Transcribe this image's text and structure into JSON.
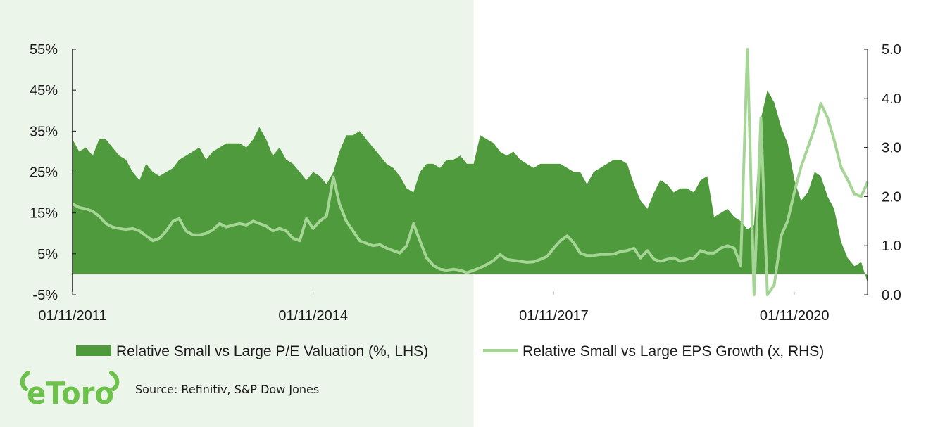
{
  "colors": {
    "highlight_band": "#ecf5e9",
    "area_fill": "#4f9a3c",
    "line": "#a4d595",
    "axis": "#1a1a1a",
    "logo": "#6cc24a"
  },
  "logo": {
    "text": "eToro"
  },
  "source": "Source: Refinitiv, S&P Dow Jones",
  "chart_data": {
    "type": "area",
    "x_axis": {
      "type": "date",
      "range": [
        "2011-11-01",
        "2021-09-30"
      ],
      "tick_labels": [
        "01/11/2011",
        "01/11/2014",
        "01/11/2017",
        "01/11/2020"
      ],
      "tick_dates": [
        "2011-11-01",
        "2014-11-01",
        "2017-11-01",
        "2020-11-01"
      ]
    },
    "y_left": {
      "range": [
        -5,
        55
      ],
      "unit": "%",
      "tick_labels": [
        "-5%",
        "5%",
        "15%",
        "25%",
        "35%",
        "45%",
        "55%"
      ],
      "tick_values": [
        -5,
        5,
        15,
        25,
        35,
        45,
        55
      ]
    },
    "y_right": {
      "range": [
        0,
        5
      ],
      "tick_labels": [
        "0.0",
        "1.0",
        "2.0",
        "3.0",
        "4.0",
        "5.0"
      ],
      "tick_values": [
        0,
        1,
        2,
        3,
        4,
        5
      ]
    },
    "grid": false,
    "legend_placement": "bottom",
    "highlight_band": [
      "2011-11-01",
      "2016-11-01"
    ],
    "series": [
      {
        "name": "Relative Small vs Large P/E Valuation (%, LHS)",
        "axis": "left",
        "type": "area",
        "points": [
          [
            "2011-11-01",
            33
          ],
          [
            "2011-12-01",
            30
          ],
          [
            "2012-01-01",
            31
          ],
          [
            "2012-02-01",
            29
          ],
          [
            "2012-03-01",
            33
          ],
          [
            "2012-04-01",
            33
          ],
          [
            "2012-05-01",
            31
          ],
          [
            "2012-06-01",
            29
          ],
          [
            "2012-07-01",
            28
          ],
          [
            "2012-08-01",
            25
          ],
          [
            "2012-09-01",
            23
          ],
          [
            "2012-10-01",
            27
          ],
          [
            "2012-11-01",
            25
          ],
          [
            "2012-12-01",
            24
          ],
          [
            "2013-01-01",
            25
          ],
          [
            "2013-02-01",
            26
          ],
          [
            "2013-03-01",
            28
          ],
          [
            "2013-04-01",
            29
          ],
          [
            "2013-05-01",
            30
          ],
          [
            "2013-06-01",
            31
          ],
          [
            "2013-07-01",
            28
          ],
          [
            "2013-08-01",
            30
          ],
          [
            "2013-09-01",
            31
          ],
          [
            "2013-10-01",
            32
          ],
          [
            "2013-11-01",
            32
          ],
          [
            "2013-12-01",
            32
          ],
          [
            "2014-01-01",
            31
          ],
          [
            "2014-02-01",
            33
          ],
          [
            "2014-03-01",
            36
          ],
          [
            "2014-04-01",
            33
          ],
          [
            "2014-05-01",
            29
          ],
          [
            "2014-06-01",
            31
          ],
          [
            "2014-07-01",
            28
          ],
          [
            "2014-08-01",
            27
          ],
          [
            "2014-09-01",
            25
          ],
          [
            "2014-10-01",
            23
          ],
          [
            "2014-11-01",
            25
          ],
          [
            "2014-12-01",
            24
          ],
          [
            "2015-01-01",
            22
          ],
          [
            "2015-02-01",
            25
          ],
          [
            "2015-03-01",
            30
          ],
          [
            "2015-04-01",
            34
          ],
          [
            "2015-05-01",
            34
          ],
          [
            "2015-06-01",
            35
          ],
          [
            "2015-07-01",
            33
          ],
          [
            "2015-08-01",
            31
          ],
          [
            "2015-09-01",
            29
          ],
          [
            "2015-10-01",
            27
          ],
          [
            "2015-11-01",
            26
          ],
          [
            "2015-12-01",
            24
          ],
          [
            "2016-01-01",
            21
          ],
          [
            "2016-02-01",
            20
          ],
          [
            "2016-03-01",
            25
          ],
          [
            "2016-04-01",
            27
          ],
          [
            "2016-05-01",
            27
          ],
          [
            "2016-06-01",
            26
          ],
          [
            "2016-07-01",
            28
          ],
          [
            "2016-08-01",
            28
          ],
          [
            "2016-09-01",
            29
          ],
          [
            "2016-10-01",
            27
          ],
          [
            "2016-11-01",
            27
          ],
          [
            "2016-12-01",
            34
          ],
          [
            "2017-01-01",
            33
          ],
          [
            "2017-02-01",
            32
          ],
          [
            "2017-03-01",
            30
          ],
          [
            "2017-04-01",
            29
          ],
          [
            "2017-05-01",
            30
          ],
          [
            "2017-06-01",
            28
          ],
          [
            "2017-07-01",
            27
          ],
          [
            "2017-08-01",
            26
          ],
          [
            "2017-09-01",
            27
          ],
          [
            "2017-10-01",
            27
          ],
          [
            "2017-11-01",
            27
          ],
          [
            "2017-12-01",
            27
          ],
          [
            "2018-01-01",
            26
          ],
          [
            "2018-02-01",
            25
          ],
          [
            "2018-03-01",
            25
          ],
          [
            "2018-04-01",
            22
          ],
          [
            "2018-05-01",
            25
          ],
          [
            "2018-06-01",
            26
          ],
          [
            "2018-07-01",
            27
          ],
          [
            "2018-08-01",
            28
          ],
          [
            "2018-09-01",
            28
          ],
          [
            "2018-10-01",
            27
          ],
          [
            "2018-11-01",
            22
          ],
          [
            "2018-12-01",
            18
          ],
          [
            "2019-01-01",
            16
          ],
          [
            "2019-02-01",
            20
          ],
          [
            "2019-03-01",
            23
          ],
          [
            "2019-04-01",
            22
          ],
          [
            "2019-05-01",
            20
          ],
          [
            "2019-06-01",
            21
          ],
          [
            "2019-07-01",
            21
          ],
          [
            "2019-08-01",
            20
          ],
          [
            "2019-09-01",
            23
          ],
          [
            "2019-10-01",
            24
          ],
          [
            "2019-11-01",
            14
          ],
          [
            "2019-12-01",
            15
          ],
          [
            "2020-01-01",
            16
          ],
          [
            "2020-02-01",
            14
          ],
          [
            "2020-03-01",
            13
          ],
          [
            "2020-04-01",
            11
          ],
          [
            "2020-05-01",
            12
          ],
          [
            "2020-06-01",
            38
          ],
          [
            "2020-07-01",
            45
          ],
          [
            "2020-08-01",
            42
          ],
          [
            "2020-09-01",
            36
          ],
          [
            "2020-10-01",
            32
          ],
          [
            "2020-11-01",
            23
          ],
          [
            "2020-12-01",
            18
          ],
          [
            "2021-01-01",
            20
          ],
          [
            "2021-02-01",
            25
          ],
          [
            "2021-03-01",
            24
          ],
          [
            "2021-04-01",
            19
          ],
          [
            "2021-05-01",
            16
          ],
          [
            "2021-06-01",
            8
          ],
          [
            "2021-07-01",
            4
          ],
          [
            "2021-08-01",
            2
          ],
          [
            "2021-09-01",
            3
          ],
          [
            "2021-09-30",
            -2
          ]
        ]
      },
      {
        "name": "Relative Small vs Large EPS Growth (x, RHS)",
        "axis": "right",
        "type": "line",
        "points": [
          [
            "2011-11-01",
            1.85
          ],
          [
            "2011-12-01",
            1.78
          ],
          [
            "2012-01-01",
            1.75
          ],
          [
            "2012-02-01",
            1.7
          ],
          [
            "2012-03-01",
            1.6
          ],
          [
            "2012-04-01",
            1.45
          ],
          [
            "2012-05-01",
            1.38
          ],
          [
            "2012-06-01",
            1.35
          ],
          [
            "2012-07-01",
            1.33
          ],
          [
            "2012-08-01",
            1.35
          ],
          [
            "2012-09-01",
            1.3
          ],
          [
            "2012-10-01",
            1.2
          ],
          [
            "2012-11-01",
            1.1
          ],
          [
            "2012-12-01",
            1.15
          ],
          [
            "2013-01-01",
            1.3
          ],
          [
            "2013-02-01",
            1.5
          ],
          [
            "2013-03-01",
            1.55
          ],
          [
            "2013-04-01",
            1.3
          ],
          [
            "2013-05-01",
            1.22
          ],
          [
            "2013-06-01",
            1.22
          ],
          [
            "2013-07-01",
            1.25
          ],
          [
            "2013-08-01",
            1.32
          ],
          [
            "2013-09-01",
            1.45
          ],
          [
            "2013-10-01",
            1.38
          ],
          [
            "2013-11-01",
            1.42
          ],
          [
            "2013-12-01",
            1.45
          ],
          [
            "2014-01-01",
            1.42
          ],
          [
            "2014-02-01",
            1.5
          ],
          [
            "2014-03-01",
            1.45
          ],
          [
            "2014-04-01",
            1.4
          ],
          [
            "2014-05-01",
            1.3
          ],
          [
            "2014-06-01",
            1.35
          ],
          [
            "2014-07-01",
            1.3
          ],
          [
            "2014-08-01",
            1.15
          ],
          [
            "2014-09-01",
            1.1
          ],
          [
            "2014-10-01",
            1.55
          ],
          [
            "2014-11-01",
            1.35
          ],
          [
            "2014-12-01",
            1.5
          ],
          [
            "2015-01-01",
            1.6
          ],
          [
            "2015-02-01",
            2.4
          ],
          [
            "2015-03-01",
            1.85
          ],
          [
            "2015-04-01",
            1.5
          ],
          [
            "2015-05-01",
            1.3
          ],
          [
            "2015-06-01",
            1.1
          ],
          [
            "2015-07-01",
            1.05
          ],
          [
            "2015-08-01",
            1.0
          ],
          [
            "2015-09-01",
            1.02
          ],
          [
            "2015-10-01",
            0.95
          ],
          [
            "2015-11-01",
            0.9
          ],
          [
            "2015-12-01",
            0.85
          ],
          [
            "2016-01-01",
            1.0
          ],
          [
            "2016-02-01",
            1.45
          ],
          [
            "2016-03-01",
            1.1
          ],
          [
            "2016-04-01",
            0.75
          ],
          [
            "2016-05-01",
            0.6
          ],
          [
            "2016-06-01",
            0.52
          ],
          [
            "2016-07-01",
            0.5
          ],
          [
            "2016-08-01",
            0.52
          ],
          [
            "2016-09-01",
            0.5
          ],
          [
            "2016-10-01",
            0.45
          ],
          [
            "2016-11-01",
            0.5
          ],
          [
            "2016-12-01",
            0.55
          ],
          [
            "2017-01-01",
            0.62
          ],
          [
            "2017-02-01",
            0.7
          ],
          [
            "2017-03-01",
            0.82
          ],
          [
            "2017-04-01",
            0.72
          ],
          [
            "2017-05-01",
            0.7
          ],
          [
            "2017-06-01",
            0.68
          ],
          [
            "2017-07-01",
            0.66
          ],
          [
            "2017-08-01",
            0.67
          ],
          [
            "2017-09-01",
            0.72
          ],
          [
            "2017-10-01",
            0.78
          ],
          [
            "2017-11-01",
            0.95
          ],
          [
            "2017-12-01",
            1.1
          ],
          [
            "2018-01-01",
            1.2
          ],
          [
            "2018-02-01",
            1.05
          ],
          [
            "2018-03-01",
            0.85
          ],
          [
            "2018-04-01",
            0.8
          ],
          [
            "2018-05-01",
            0.8
          ],
          [
            "2018-06-01",
            0.82
          ],
          [
            "2018-07-01",
            0.82
          ],
          [
            "2018-08-01",
            0.83
          ],
          [
            "2018-09-01",
            0.88
          ],
          [
            "2018-10-01",
            0.9
          ],
          [
            "2018-11-01",
            0.95
          ],
          [
            "2018-12-01",
            0.75
          ],
          [
            "2019-01-01",
            0.9
          ],
          [
            "2019-02-01",
            0.72
          ],
          [
            "2019-03-01",
            0.68
          ],
          [
            "2019-04-01",
            0.72
          ],
          [
            "2019-05-01",
            0.75
          ],
          [
            "2019-06-01",
            0.68
          ],
          [
            "2019-07-01",
            0.72
          ],
          [
            "2019-08-01",
            0.75
          ],
          [
            "2019-09-01",
            0.9
          ],
          [
            "2019-10-01",
            0.85
          ],
          [
            "2019-11-01",
            0.85
          ],
          [
            "2019-12-01",
            0.95
          ],
          [
            "2020-01-01",
            1.0
          ],
          [
            "2020-02-01",
            0.95
          ],
          [
            "2020-03-01",
            0.6
          ],
          [
            "2020-04-01",
            5.0
          ],
          [
            "2020-05-01",
            0.0
          ],
          [
            "2020-06-01",
            3.6
          ],
          [
            "2020-07-01",
            0.0
          ],
          [
            "2020-08-01",
            0.2
          ],
          [
            "2020-09-01",
            1.2
          ],
          [
            "2020-10-01",
            1.5
          ],
          [
            "2020-11-01",
            2.1
          ],
          [
            "2020-12-01",
            2.6
          ],
          [
            "2021-01-01",
            3.0
          ],
          [
            "2021-02-01",
            3.4
          ],
          [
            "2021-03-01",
            3.9
          ],
          [
            "2021-04-01",
            3.6
          ],
          [
            "2021-05-01",
            3.15
          ],
          [
            "2021-06-01",
            2.6
          ],
          [
            "2021-07-01",
            2.35
          ],
          [
            "2021-08-01",
            2.05
          ],
          [
            "2021-09-01",
            2.0
          ],
          [
            "2021-09-30",
            2.3
          ]
        ]
      }
    ]
  }
}
